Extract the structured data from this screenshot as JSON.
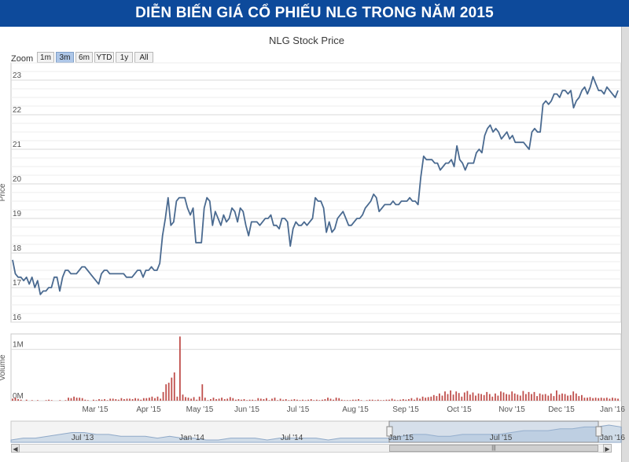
{
  "banner": {
    "title": "DIỄN BIẾN GIÁ CỔ PHIẾU NLG TRONG NĂM 2015"
  },
  "chart": {
    "title": "NLG Stock Price",
    "zoom_label": "Zoom",
    "zoom_buttons": [
      "1m",
      "3m",
      "6m",
      "YTD",
      "1y",
      "All"
    ],
    "zoom_active": "3m"
  },
  "colors": {
    "banner": "#0d4a9b",
    "price_line": "#4a6a90",
    "volume_bar": "#c0504d",
    "navigator_fill": "#b8cbe0"
  },
  "chart_data": {
    "type": "line",
    "title": "NLG Stock Price",
    "price": {
      "ylabel": "Price",
      "ylim": [
        16,
        23.5
      ],
      "yticks": [
        16,
        17,
        18,
        19,
        20,
        21,
        22,
        23
      ],
      "values": [
        17.8,
        17.4,
        17.3,
        17.3,
        17.2,
        17.3,
        17.1,
        17.3,
        17.0,
        17.2,
        16.8,
        16.9,
        16.9,
        17.0,
        17.0,
        17.3,
        17.3,
        16.9,
        17.3,
        17.5,
        17.5,
        17.4,
        17.4,
        17.4,
        17.5,
        17.6,
        17.6,
        17.5,
        17.4,
        17.3,
        17.2,
        17.1,
        17.4,
        17.5,
        17.5,
        17.4,
        17.4,
        17.4,
        17.4,
        17.4,
        17.4,
        17.3,
        17.3,
        17.3,
        17.4,
        17.5,
        17.5,
        17.3,
        17.5,
        17.5,
        17.6,
        17.5,
        17.5,
        17.7,
        18.5,
        19.0,
        19.6,
        18.8,
        18.9,
        19.5,
        19.6,
        19.6,
        19.6,
        19.3,
        19.1,
        19.3,
        18.3,
        18.3,
        18.3,
        19.3,
        19.6,
        19.5,
        18.8,
        19.2,
        19.0,
        18.8,
        19.1,
        18.9,
        19.0,
        19.3,
        19.2,
        18.9,
        19.3,
        19.2,
        18.8,
        18.5,
        18.9,
        18.9,
        18.9,
        18.8,
        18.9,
        19.0,
        19.0,
        19.1,
        18.8,
        18.8,
        18.7,
        19.0,
        19.0,
        18.9,
        18.2,
        18.7,
        18.9,
        18.8,
        18.8,
        18.9,
        18.8,
        18.9,
        19.0,
        19.6,
        19.5,
        19.5,
        19.3,
        18.6,
        18.9,
        18.6,
        18.7,
        19.0,
        19.1,
        19.2,
        19.0,
        18.8,
        18.8,
        18.9,
        19.0,
        19.0,
        19.1,
        19.3,
        19.4,
        19.5,
        19.7,
        19.6,
        19.2,
        19.3,
        19.4,
        19.4,
        19.4,
        19.5,
        19.4,
        19.4,
        19.5,
        19.5,
        19.5,
        19.6,
        19.5,
        19.5,
        19.4,
        20.2,
        20.8,
        20.7,
        20.7,
        20.7,
        20.6,
        20.6,
        20.4,
        20.5,
        20.6,
        20.6,
        20.7,
        20.5,
        21.1,
        20.7,
        20.6,
        20.4,
        20.6,
        20.6,
        20.6,
        20.9,
        21.0,
        20.9,
        21.4,
        21.6,
        21.7,
        21.5,
        21.6,
        21.5,
        21.3,
        21.4,
        21.5,
        21.3,
        21.4,
        21.2,
        21.2,
        21.2,
        21.2,
        21.1,
        21.0,
        21.5,
        21.6,
        21.5,
        21.5,
        22.3,
        22.4,
        22.3,
        22.4,
        22.6,
        22.6,
        22.5,
        22.7,
        22.7,
        22.6,
        22.7,
        22.2,
        22.4,
        22.5,
        22.7,
        22.8,
        22.6,
        22.8,
        23.1,
        22.9,
        22.7,
        22.7,
        22.6,
        22.8,
        22.7,
        22.6,
        22.5,
        22.7
      ]
    },
    "volume": {
      "ylabel": "Volume",
      "ylim": [
        0,
        1300000
      ],
      "tick_labels": [
        "0M",
        "1M"
      ],
      "values": [
        40000,
        60000,
        30000,
        20000,
        0,
        20000,
        0,
        10000,
        0,
        10000,
        0,
        0,
        10000,
        20000,
        10000,
        0,
        0,
        10000,
        0,
        10000,
        60000,
        50000,
        80000,
        60000,
        60000,
        50000,
        20000,
        10000,
        0,
        20000,
        10000,
        30000,
        20000,
        30000,
        10000,
        40000,
        40000,
        30000,
        20000,
        50000,
        30000,
        40000,
        40000,
        30000,
        50000,
        40000,
        20000,
        50000,
        50000,
        60000,
        80000,
        50000,
        80000,
        40000,
        170000,
        320000,
        350000,
        450000,
        550000,
        80000,
        1250000,
        120000,
        70000,
        60000,
        40000,
        70000,
        20000,
        80000,
        320000,
        60000,
        10000,
        30000,
        60000,
        30000,
        40000,
        60000,
        30000,
        40000,
        70000,
        50000,
        20000,
        30000,
        20000,
        30000,
        10000,
        20000,
        20000,
        10000,
        50000,
        40000,
        30000,
        50000,
        10000,
        40000,
        60000,
        10000,
        40000,
        20000,
        30000,
        10000,
        20000,
        30000,
        20000,
        10000,
        20000,
        10000,
        20000,
        30000,
        10000,
        20000,
        10000,
        20000,
        30000,
        60000,
        40000,
        20000,
        60000,
        50000,
        20000,
        10000,
        10000,
        10000,
        20000,
        20000,
        30000,
        10000,
        0,
        10000,
        20000,
        20000,
        10000,
        20000,
        10000,
        10000,
        20000,
        20000,
        40000,
        20000,
        10000,
        20000,
        30000,
        20000,
        30000,
        50000,
        20000,
        60000,
        40000,
        80000,
        60000,
        70000,
        80000,
        110000,
        90000,
        140000,
        100000,
        180000,
        130000,
        200000,
        120000,
        180000,
        150000,
        80000,
        160000,
        190000,
        120000,
        160000,
        100000,
        140000,
        130000,
        110000,
        170000,
        130000,
        80000,
        140000,
        100000,
        180000,
        160000,
        130000,
        120000,
        180000,
        140000,
        120000,
        100000,
        190000,
        130000,
        170000,
        130000,
        170000,
        90000,
        140000,
        120000,
        130000,
        100000,
        140000,
        90000,
        200000,
        120000,
        140000,
        130000,
        100000,
        110000,
        180000,
        140000,
        90000,
        110000,
        60000,
        60000,
        70000,
        50000,
        60000,
        50000,
        60000,
        50000,
        60000,
        40000,
        60000,
        50000,
        40000
      ]
    },
    "x_tick_labels": [
      "Mar '15",
      "Apr '15",
      "May '15",
      "Jun '15",
      "Jul '15",
      "Aug '15",
      "Sep '15",
      "Oct '15",
      "Nov '15",
      "Dec '15",
      "Jan '16"
    ],
    "navigator": {
      "tick_labels": [
        "Jul '13",
        "Jan '14",
        "Jul '14",
        "Jan '15",
        "Jul '15",
        "Jan '16"
      ],
      "values": [
        16,
        17,
        17,
        18,
        19,
        20,
        20,
        19,
        19,
        18,
        18,
        18,
        17,
        18,
        17,
        17,
        16,
        16,
        17,
        17,
        17,
        16,
        17,
        17,
        17,
        17,
        16,
        17,
        17,
        17,
        17,
        17,
        18,
        19,
        19,
        18,
        18,
        19,
        19,
        19,
        19,
        20,
        21,
        21,
        21,
        22,
        22,
        23,
        23,
        24,
        23
      ]
    }
  }
}
